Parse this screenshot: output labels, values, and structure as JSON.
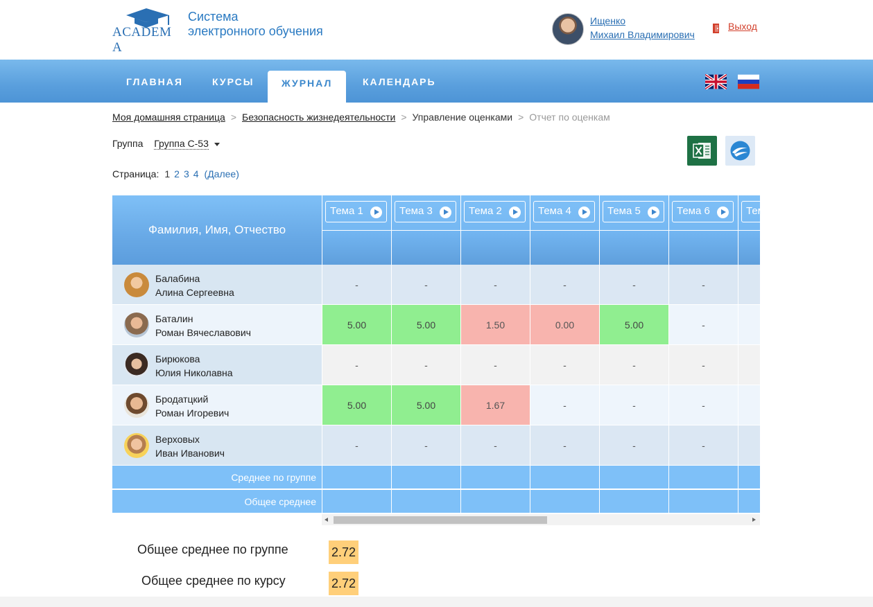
{
  "header": {
    "logo_text": "ACADEM A",
    "system_title_line1": "Система",
    "system_title_line2": "электронного обучения",
    "user_last_name": "Ищенко",
    "user_first_middle": "Михаил Владимирович",
    "exit_label": "Выход"
  },
  "nav": {
    "tabs": [
      {
        "label": "ГЛАВНАЯ",
        "active": false
      },
      {
        "label": "КУРСЫ",
        "active": false
      },
      {
        "label": "ЖУРНАЛ",
        "active": true
      },
      {
        "label": "КАЛЕНДАРЬ",
        "active": false
      }
    ],
    "languages": [
      "en-flag-icon",
      "ru-flag-icon"
    ]
  },
  "breadcrumb": {
    "items": [
      "Моя домашняя страница",
      "Безопасность жизнедеятельности",
      "Управление оценками",
      "Отчет по оценкам"
    ],
    "separator": ">"
  },
  "filter": {
    "group_label": "Группа",
    "group_value": "Группа С-53"
  },
  "pager": {
    "label": "Страница:",
    "pages": [
      "1",
      "2",
      "3",
      "4"
    ],
    "current": "1",
    "next_label": "(Далее)"
  },
  "export": {
    "excel_icon": "excel-icon",
    "other_icon": "openoffice-icon"
  },
  "table": {
    "name_header": "Фамилия, Имя, Отчество",
    "topics": [
      "Тема 1",
      "Тема 3",
      "Тема 2",
      "Тема 4",
      "Тема 5",
      "Тема 6",
      "Тема"
    ],
    "students": [
      {
        "last": "Балабина",
        "first": "Алина Сергеевна",
        "grades": [
          "-",
          "-",
          "-",
          "-",
          "-",
          "-",
          ""
        ],
        "status": [
          "",
          "",
          "",
          "",
          "",
          "",
          ""
        ]
      },
      {
        "last": "Баталин",
        "first": "Роман Вячеславович",
        "grades": [
          "5.00",
          "5.00",
          "1.50",
          "0.00",
          "5.00",
          "-",
          ""
        ],
        "status": [
          "pass",
          "pass",
          "fail",
          "fail",
          "pass",
          "",
          ""
        ]
      },
      {
        "last": "Бирюкова",
        "first": "Юлия Николавна",
        "grades": [
          "-",
          "-",
          "-",
          "-",
          "-",
          "-",
          ""
        ],
        "status": [
          "",
          "",
          "",
          "",
          "",
          "",
          ""
        ]
      },
      {
        "last": "Бродатцкий",
        "first": "Роман Игоревич",
        "grades": [
          "5.00",
          "5.00",
          "1.67",
          "-",
          "-",
          "-",
          ""
        ],
        "status": [
          "pass",
          "pass",
          "fail",
          "",
          "",
          "",
          ""
        ]
      },
      {
        "last": "Верховых",
        "first": "Иван Иванович",
        "grades": [
          "-",
          "-",
          "-",
          "-",
          "-",
          "-",
          ""
        ],
        "status": [
          "",
          "",
          "",
          "",
          "",
          "",
          ""
        ]
      }
    ],
    "group_avg_label": "Среднее по группе",
    "overall_avg_label": "Общее среднее"
  },
  "totals": {
    "group_label": "Общее среднее по группе",
    "group_value": "2.72",
    "course_label": "Общее среднее по курсу",
    "course_value": "2.72"
  },
  "colors": {
    "accent": "#5c9ddd",
    "pass": "#90ee90",
    "fail": "#f8b4ae",
    "total_badge": "#ffcf7a",
    "exit": "#d2402c"
  }
}
